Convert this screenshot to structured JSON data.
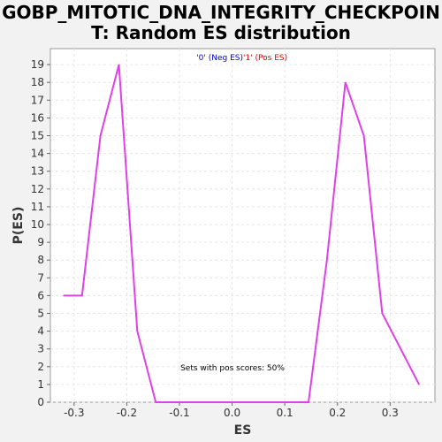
{
  "chart_data": {
    "type": "line",
    "title_line1": "GOBP_MITOTIC_DNA_INTEGRITY_CHECKPOIN",
    "title_line2": "T: Random ES distribution",
    "xlabel": "ES",
    "ylabel": "P(ES)",
    "xlim": [
      -0.345,
      0.385
    ],
    "ylim": [
      0,
      19.9
    ],
    "xticks": [
      -0.3,
      -0.2,
      -0.1,
      0.0,
      0.1,
      0.2,
      0.3
    ],
    "xtick_labels": [
      "-0.3",
      "-0.2",
      "-0.1",
      "0.0",
      "0.1",
      "0.2",
      "0.3"
    ],
    "yticks": [
      0,
      1,
      2,
      3,
      4,
      5,
      6,
      7,
      8,
      9,
      10,
      11,
      12,
      13,
      14,
      15,
      16,
      17,
      18,
      19
    ],
    "grid": true,
    "legend": {
      "placement": "top-center",
      "entries": [
        {
          "label": "'0' (Neg ES)",
          "color": "#0000cc"
        },
        {
          "label": "'1' (Pos ES)",
          "color": "#dd0000"
        }
      ]
    },
    "annotation": "Sets with pos scores: 50%",
    "series": [
      {
        "color": "#e040e8",
        "x": [
          -0.32,
          -0.285,
          -0.25,
          -0.215,
          -0.18,
          -0.145,
          0.145,
          0.18,
          0.215,
          0.25,
          0.285,
          0.355
        ],
        "y": [
          6,
          6,
          15,
          19,
          4,
          0,
          0,
          8,
          18,
          15,
          5,
          1
        ]
      }
    ]
  }
}
